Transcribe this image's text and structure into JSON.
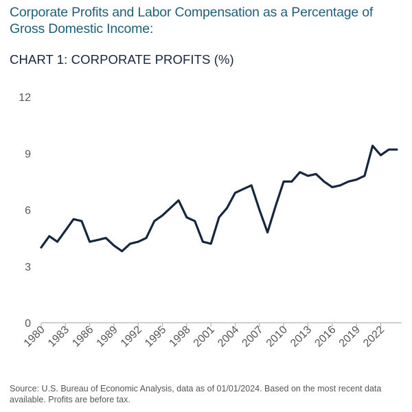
{
  "header": {
    "heading": "Corporate Profits and Labor Compensation as a Percentage of Gross Domestic Income:"
  },
  "chart_data": {
    "type": "line",
    "title": "CHART 1: CORPORATE PROFITS (%)",
    "xlabel": "",
    "ylabel": "",
    "ylim": [
      0,
      12
    ],
    "yticks": [
      0,
      3,
      6,
      9,
      12
    ],
    "xticks": [
      "1980",
      "1983",
      "1986",
      "1989",
      "1992",
      "1995",
      "1998",
      "2001",
      "2004",
      "2007",
      "2010",
      "2013",
      "2016",
      "2019",
      "2022"
    ],
    "grid": false,
    "line_color": "#16263d",
    "series": [
      {
        "name": "Corporate Profits (%)",
        "x": [
          1980,
          1981,
          1982,
          1983,
          1984,
          1985,
          1986,
          1987,
          1988,
          1989,
          1990,
          1991,
          1992,
          1993,
          1994,
          1995,
          1996,
          1997,
          1998,
          1999,
          2000,
          2001,
          2002,
          2003,
          2004,
          2005,
          2006,
          2007,
          2008,
          2009,
          2010,
          2011,
          2012,
          2013,
          2014,
          2015,
          2016,
          2017,
          2018,
          2019,
          2020,
          2021,
          2022,
          2023,
          2024
        ],
        "values": [
          4.0,
          4.6,
          4.3,
          4.9,
          5.5,
          5.4,
          4.3,
          4.4,
          4.5,
          4.1,
          3.8,
          4.2,
          4.3,
          4.5,
          5.4,
          5.7,
          6.1,
          6.5,
          5.6,
          5.4,
          4.3,
          4.2,
          5.6,
          6.1,
          6.9,
          7.1,
          7.3,
          6.0,
          4.8,
          6.2,
          7.5,
          7.5,
          8.0,
          7.8,
          7.9,
          7.5,
          7.2,
          7.3,
          7.5,
          7.6,
          7.8,
          9.4,
          8.9,
          9.2,
          9.2
        ]
      }
    ]
  },
  "footer": {
    "source": "Source: U.S. Bureau of Economic Analysis, data as of 01/01/2024. Based on the most recent data available. Profits are before tax."
  }
}
